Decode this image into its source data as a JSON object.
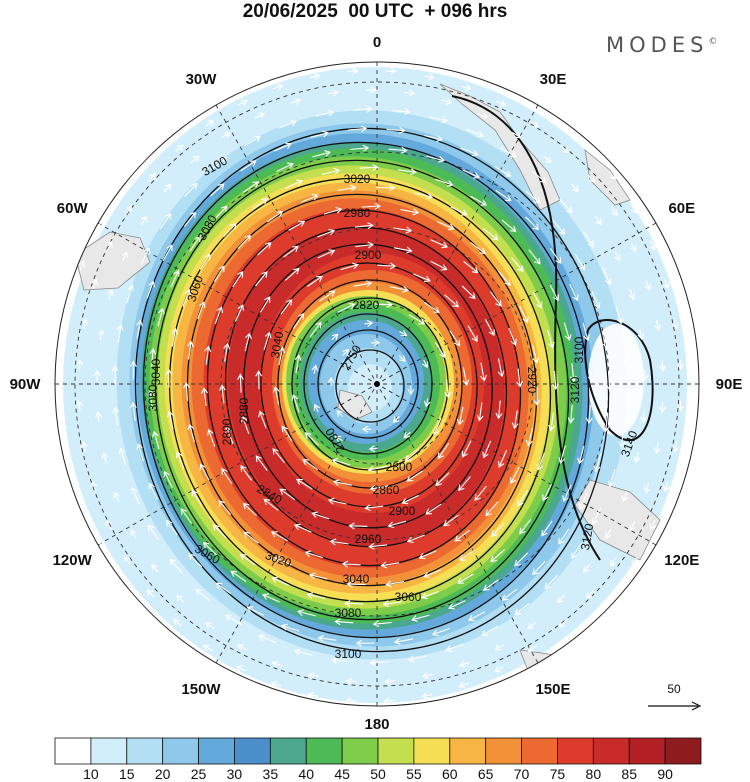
{
  "title": "20/06/2025  00 UTC  + 096 hrs",
  "logo": "MODES",
  "logo_mark": "©",
  "longitude_labels": [
    {
      "name": "0",
      "lon": 0
    },
    {
      "name": "30E",
      "lon": 30
    },
    {
      "name": "60E",
      "lon": 60
    },
    {
      "name": "90E",
      "lon": 90
    },
    {
      "name": "120E",
      "lon": 120
    },
    {
      "name": "150E",
      "lon": 150
    },
    {
      "name": "180",
      "lon": 180
    },
    {
      "name": "150W",
      "lon": -150
    },
    {
      "name": "120W",
      "lon": -120
    },
    {
      "name": "90W",
      "lon": -90
    },
    {
      "name": "60W",
      "lon": -60
    },
    {
      "name": "30W",
      "lon": -30
    }
  ],
  "contour_labels": [
    "3100",
    "3080",
    "3060",
    "3040",
    "3020",
    "2980",
    "2900",
    "2820",
    "2750",
    "2780",
    "2800",
    "2860",
    "2840",
    "2900",
    "2960",
    "3020",
    "3040",
    "3060",
    "3080",
    "3100",
    "3120",
    "3140",
    "3100",
    "3080",
    "3060",
    "3040",
    "2880",
    "2890",
    "2920",
    "3120"
  ],
  "reference_vector": {
    "value": "50"
  },
  "colorbar": {
    "levels": [
      "10",
      "15",
      "20",
      "25",
      "30",
      "35",
      "40",
      "45",
      "50",
      "55",
      "60",
      "65",
      "70",
      "75",
      "80",
      "85",
      "90"
    ],
    "colors": [
      "#ffffff",
      "#d3eefb",
      "#b3dff5",
      "#8ec9ec",
      "#63a9db",
      "#4b8fcb",
      "#4ba88f",
      "#4dbb55",
      "#7dcd4a",
      "#c3df4f",
      "#f6de55",
      "#f7b543",
      "#f39139",
      "#ec6932",
      "#dd3b2c",
      "#c92a2a",
      "#b21f24",
      "#8e1b1e"
    ]
  }
}
